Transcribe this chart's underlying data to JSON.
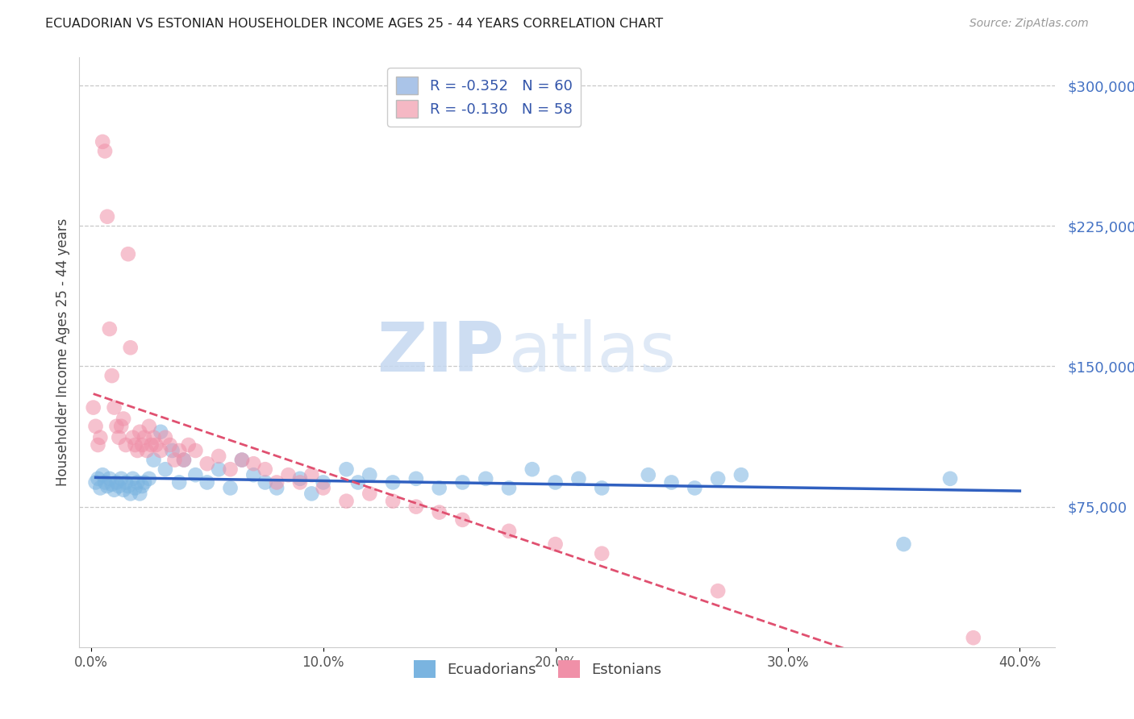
{
  "title": "ECUADORIAN VS ESTONIAN HOUSEHOLDER INCOME AGES 25 - 44 YEARS CORRELATION CHART",
  "source": "Source: ZipAtlas.com",
  "ylabel": "Householder Income Ages 25 - 44 years",
  "xlabel_ticks": [
    "0.0%",
    "10.0%",
    "20.0%",
    "30.0%",
    "40.0%"
  ],
  "xlabel_vals": [
    0.0,
    0.1,
    0.2,
    0.3,
    0.4
  ],
  "ylabel_ticks": [
    "$75,000",
    "$150,000",
    "$225,000",
    "$300,000"
  ],
  "ylabel_vals": [
    75000,
    150000,
    225000,
    300000
  ],
  "watermark_zip": "ZIP",
  "watermark_atlas": "atlas",
  "legend_entries": [
    {
      "label_r": "R = -0.352",
      "label_n": "N = 60",
      "color": "#aac4e8"
    },
    {
      "label_r": "R = -0.130",
      "label_n": "N = 58",
      "color": "#f5b8c4"
    }
  ],
  "ecuadorians_color": "#7ab4e0",
  "estonians_color": "#f090a8",
  "trendline_ecuadorians_color": "#3060c0",
  "trendline_estonians_color": "#e05070",
  "background_color": "#ffffff",
  "grid_color": "#c8c8c8",
  "ecuadorians_x": [
    0.002,
    0.003,
    0.004,
    0.005,
    0.006,
    0.007,
    0.008,
    0.009,
    0.01,
    0.011,
    0.012,
    0.013,
    0.014,
    0.015,
    0.016,
    0.017,
    0.018,
    0.019,
    0.02,
    0.021,
    0.022,
    0.023,
    0.025,
    0.027,
    0.03,
    0.032,
    0.035,
    0.038,
    0.04,
    0.045,
    0.05,
    0.055,
    0.06,
    0.065,
    0.07,
    0.075,
    0.08,
    0.09,
    0.095,
    0.1,
    0.11,
    0.115,
    0.12,
    0.13,
    0.14,
    0.15,
    0.16,
    0.17,
    0.18,
    0.19,
    0.2,
    0.21,
    0.22,
    0.24,
    0.25,
    0.26,
    0.27,
    0.28,
    0.35,
    0.37
  ],
  "ecuadorians_y": [
    88000,
    90000,
    85000,
    92000,
    88000,
    86000,
    90000,
    87000,
    84000,
    88000,
    86000,
    90000,
    84000,
    88000,
    86000,
    82000,
    90000,
    85000,
    88000,
    82000,
    86000,
    88000,
    90000,
    100000,
    115000,
    95000,
    105000,
    88000,
    100000,
    92000,
    88000,
    95000,
    85000,
    100000,
    92000,
    88000,
    85000,
    90000,
    82000,
    88000,
    95000,
    88000,
    92000,
    88000,
    90000,
    85000,
    88000,
    90000,
    85000,
    95000,
    88000,
    90000,
    85000,
    92000,
    88000,
    85000,
    90000,
    92000,
    55000,
    90000
  ],
  "estonians_x": [
    0.001,
    0.002,
    0.003,
    0.004,
    0.005,
    0.006,
    0.007,
    0.008,
    0.009,
    0.01,
    0.011,
    0.012,
    0.013,
    0.014,
    0.015,
    0.016,
    0.017,
    0.018,
    0.019,
    0.02,
    0.021,
    0.022,
    0.023,
    0.024,
    0.025,
    0.026,
    0.027,
    0.028,
    0.03,
    0.032,
    0.034,
    0.036,
    0.038,
    0.04,
    0.042,
    0.045,
    0.05,
    0.055,
    0.06,
    0.065,
    0.07,
    0.075,
    0.08,
    0.085,
    0.09,
    0.095,
    0.1,
    0.11,
    0.12,
    0.13,
    0.14,
    0.15,
    0.16,
    0.18,
    0.2,
    0.22,
    0.27,
    0.38
  ],
  "estonians_y": [
    128000,
    118000,
    108000,
    112000,
    270000,
    265000,
    230000,
    170000,
    145000,
    128000,
    118000,
    112000,
    118000,
    122000,
    108000,
    210000,
    160000,
    112000,
    108000,
    105000,
    115000,
    108000,
    112000,
    105000,
    118000,
    108000,
    112000,
    108000,
    105000,
    112000,
    108000,
    100000,
    105000,
    100000,
    108000,
    105000,
    98000,
    102000,
    95000,
    100000,
    98000,
    95000,
    88000,
    92000,
    88000,
    92000,
    85000,
    78000,
    82000,
    78000,
    75000,
    72000,
    68000,
    62000,
    55000,
    50000,
    30000,
    5000
  ],
  "ylim_min": 0,
  "ylim_max": 315000,
  "xlim_min": -0.005,
  "xlim_max": 0.415
}
